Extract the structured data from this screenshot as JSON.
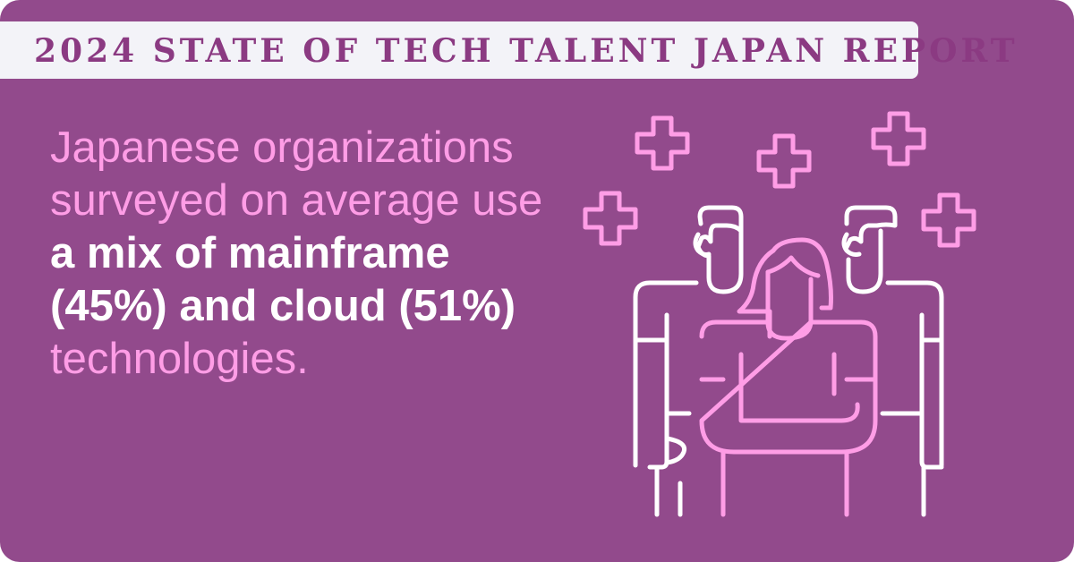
{
  "banner": {
    "title": "2024 STATE OF TECH TALENT JAPAN REPORT"
  },
  "headline": {
    "lead": "Japanese organizations surveyed on average use ",
    "emphasis": "a mix of mainframe (45%) and cloud (51%)",
    "tail": " technologies."
  },
  "illustration": {
    "icon": "team-people-icon",
    "accent_icon": "plus-sparkle-icon"
  },
  "colors": {
    "background": "#924A8C",
    "banner_background": "#F3F3F8",
    "banner_text": "#8B3A82",
    "pink_accent": "#FF9DE6",
    "white": "#FFFFFF"
  }
}
